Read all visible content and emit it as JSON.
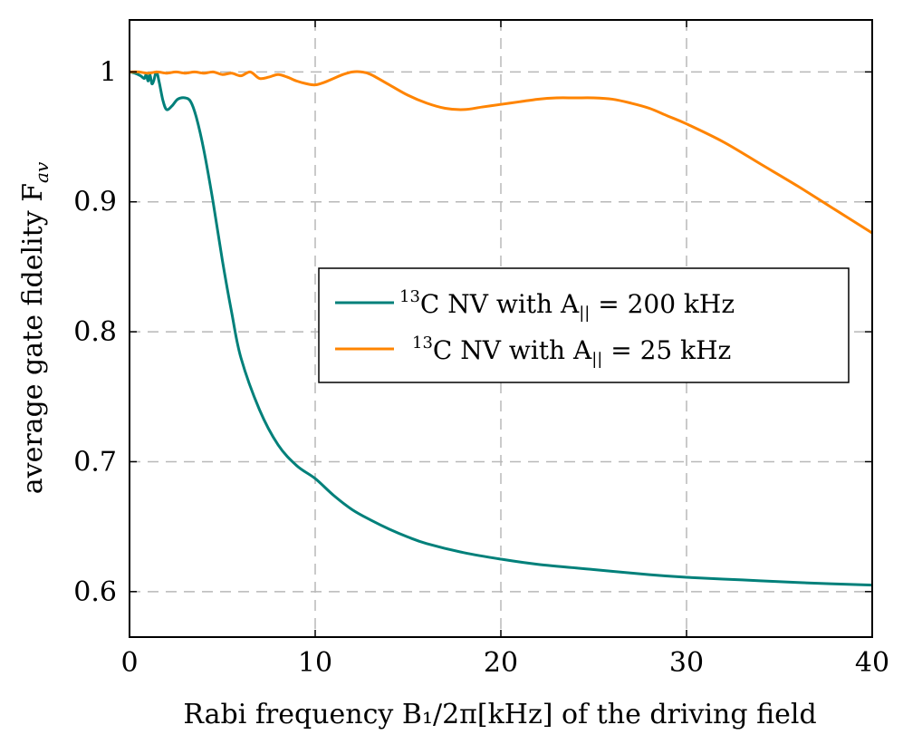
{
  "chart_data": {
    "type": "line",
    "title": "",
    "xlabel": "Rabi frequency B₁/2π[kHz] of the driving field",
    "ylabel": "average gate fidelity F",
    "ylabel_sub": "av",
    "xlim": [
      0,
      40
    ],
    "ylim": [
      0.565,
      1.04
    ],
    "x_ticks": [
      0,
      10,
      20,
      30,
      40
    ],
    "x_tick_labels": [
      "0",
      "10",
      "20",
      "30",
      "40"
    ],
    "y_ticks": [
      0.6,
      0.7,
      0.8,
      0.9,
      1.0
    ],
    "y_tick_labels": [
      "0.6",
      "0.7",
      "0.8",
      "0.9",
      "1"
    ],
    "grid": true,
    "legend_position": "center-right",
    "series": [
      {
        "name": "13C NV with A|| = 200 kHz",
        "legend_sup": "13",
        "legend_main": "C NV with A",
        "legend_sub": "||",
        "legend_tail": " = 200 kHz",
        "color": "#00807a",
        "x": [
          0,
          0.3,
          0.6,
          0.8,
          0.9,
          1.0,
          1.1,
          1.2,
          1.3,
          1.45,
          1.6,
          1.8,
          2.0,
          2.3,
          2.6,
          3.0,
          3.3,
          3.6,
          4.0,
          4.5,
          5.0,
          5.5,
          6.0,
          7.0,
          8.0,
          9.0,
          10.0,
          11.0,
          12.0,
          13.0,
          14.0,
          15.0,
          16.0,
          18.0,
          20.0,
          22.0,
          25.0,
          28.0,
          30.0,
          33.0,
          36.0,
          40.0
        ],
        "y": [
          1.0,
          0.999,
          0.997,
          0.995,
          0.998,
          0.993,
          0.998,
          0.991,
          0.993,
          1.0,
          0.992,
          0.978,
          0.971,
          0.974,
          0.979,
          0.98,
          0.977,
          0.965,
          0.94,
          0.9,
          0.855,
          0.815,
          0.78,
          0.74,
          0.713,
          0.697,
          0.687,
          0.674,
          0.663,
          0.655,
          0.648,
          0.642,
          0.637,
          0.63,
          0.625,
          0.621,
          0.617,
          0.613,
          0.611,
          0.609,
          0.607,
          0.605
        ]
      },
      {
        "name": "13C NV with A|| = 25 kHz",
        "legend_sup": "13",
        "legend_main": "C NV with A",
        "legend_sub": "||",
        "legend_tail": " = 25 kHz",
        "color": "#ff8400",
        "x": [
          0,
          0.5,
          1.0,
          1.5,
          2.0,
          2.5,
          3.0,
          3.5,
          4.0,
          4.5,
          5.0,
          5.5,
          6.0,
          6.5,
          7.0,
          7.5,
          8.0,
          8.5,
          9.0,
          9.5,
          10.0,
          10.5,
          11.0,
          11.5,
          12.0,
          12.5,
          13.0,
          14.0,
          15.0,
          16.0,
          17.0,
          18.0,
          19.0,
          20.0,
          21.0,
          22.0,
          23.0,
          24.0,
          25.0,
          26.0,
          27.0,
          28.0,
          29.0,
          30.0,
          32.0,
          34.0,
          36.0,
          38.0,
          40.0
        ],
        "y": [
          1.0,
          1.0,
          0.999,
          1.0,
          0.999,
          1.0,
          0.999,
          1.0,
          0.999,
          1.0,
          0.998,
          0.999,
          0.997,
          1.0,
          0.995,
          0.996,
          0.998,
          0.996,
          0.993,
          0.991,
          0.99,
          0.992,
          0.995,
          0.998,
          1.0,
          1.0,
          0.998,
          0.99,
          0.982,
          0.976,
          0.972,
          0.971,
          0.973,
          0.975,
          0.977,
          0.979,
          0.98,
          0.98,
          0.98,
          0.979,
          0.976,
          0.972,
          0.966,
          0.96,
          0.946,
          0.929,
          0.912,
          0.894,
          0.876
        ]
      }
    ]
  }
}
